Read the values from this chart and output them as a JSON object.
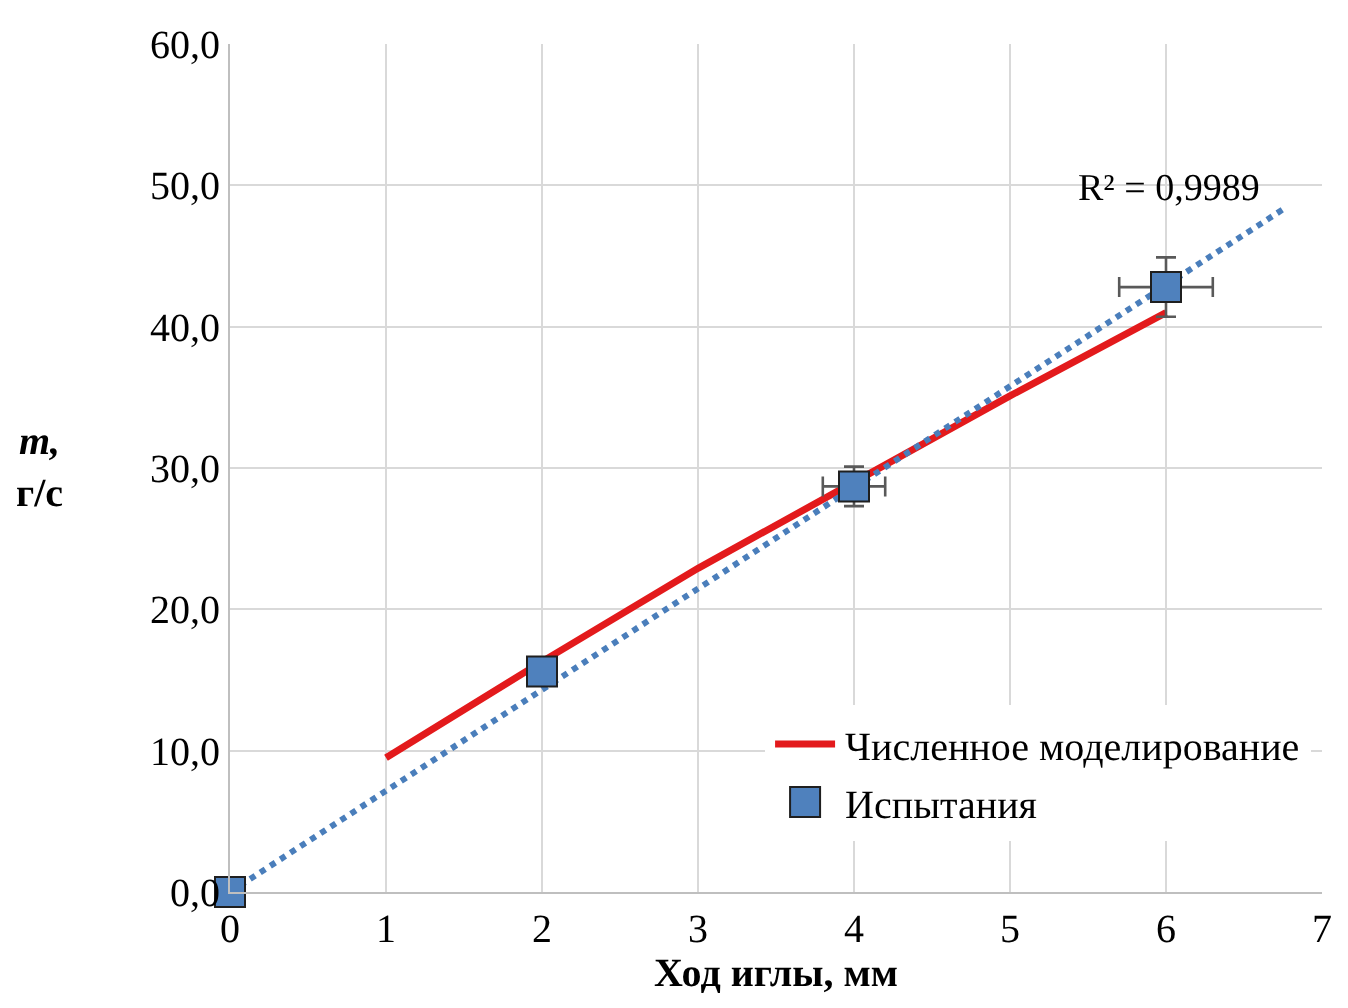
{
  "chart_data": {
    "type": "scatter",
    "xlabel": "Ход иглы, мм",
    "ylabel": "m, г/с",
    "xlim": [
      0,
      7
    ],
    "ylim": [
      0,
      60
    ],
    "xticks": [
      0,
      1,
      2,
      3,
      4,
      5,
      6,
      7
    ],
    "yticks": [
      {
        "value": 0,
        "label": "0,0"
      },
      {
        "value": 10,
        "label": "10,0"
      },
      {
        "value": 20,
        "label": "20,0"
      },
      {
        "value": 30,
        "label": "30,0"
      },
      {
        "value": 40,
        "label": "40,0"
      },
      {
        "value": 50,
        "label": "50,0"
      },
      {
        "value": 60,
        "label": "60,0"
      }
    ],
    "grid": true,
    "legend": "bottom right",
    "series": [
      {
        "type": "line",
        "name": "Численное моделирование",
        "color": "#e31a1c",
        "x": [
          1,
          2,
          3,
          4,
          5,
          6
        ],
        "values": [
          9.5,
          16.3,
          22.9,
          29.0,
          35.1,
          41.0
        ],
        "line_style": "solid"
      },
      {
        "type": "line",
        "color": "#4a7ebb",
        "x": [
          0,
          6.75
        ],
        "values": [
          0,
          48.3
        ],
        "line_style": "dotted"
      },
      {
        "name": "Испытания",
        "color": "#4f81bd",
        "marker": "square",
        "x": [
          0,
          2,
          4,
          6
        ],
        "values": [
          0,
          15.6,
          28.7,
          42.8
        ],
        "errors": [
          null,
          null,
          1.4,
          2.1
        ],
        "xerrors": [
          null,
          null,
          0.2,
          0.3
        ]
      }
    ],
    "annotations": [
      "R² = 0,9989"
    ]
  }
}
